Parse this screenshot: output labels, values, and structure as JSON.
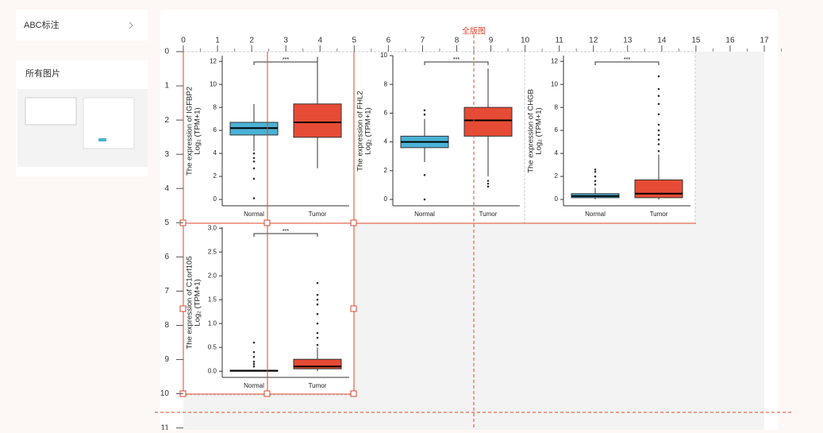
{
  "sidebar": {
    "annotation_item": "ABC标注",
    "all_images_title": "所有图片"
  },
  "canvas": {
    "layout_label": "全版图",
    "ruler_x": [
      0,
      1,
      2,
      3,
      4,
      5,
      6,
      7,
      8,
      9,
      10,
      11,
      12,
      13,
      14,
      15,
      16,
      17
    ],
    "ruler_y": [
      0,
      1,
      2,
      3,
      4,
      5,
      6,
      7,
      8,
      9,
      10,
      11
    ]
  },
  "panels": [
    {
      "ylabel": "The expression of IGFBP2",
      "ylabel2": "Log₂ (TPM+1)",
      "significance": "***",
      "categories": [
        "Normal",
        "Tumor"
      ],
      "colors": [
        "#4ab2d6",
        "#e64b35"
      ],
      "ylim": [
        -0.55,
        12.5
      ],
      "yticks": [
        0,
        2,
        4,
        6,
        8,
        10,
        12
      ],
      "boxes": [
        {
          "whisker_low": 4.2,
          "q1": 5.6,
          "median": 6.2,
          "q3": 6.7,
          "whisker_high": 8.3,
          "outliers": [
            0.1,
            1.8,
            2.7,
            3.3,
            3.6,
            4.0
          ]
        },
        {
          "whisker_low": 2.7,
          "q1": 5.4,
          "median": 6.7,
          "q3": 8.3,
          "whisker_high": 12.4,
          "outliers": []
        }
      ]
    },
    {
      "ylabel": "The expression of FHL2",
      "ylabel2": "Log₂ (TPM+1)",
      "significance": "***",
      "categories": [
        "Normal",
        "Tumor"
      ],
      "colors": [
        "#4ab2d6",
        "#e64b35"
      ],
      "ylim": [
        -0.44,
        10
      ],
      "yticks": [
        0,
        2,
        4,
        6,
        8,
        10
      ],
      "boxes": [
        {
          "whisker_low": 2.6,
          "q1": 3.6,
          "median": 4.0,
          "q3": 4.4,
          "whisker_high": 5.6,
          "outliers": [
            0,
            1.7,
            5.9,
            6.2
          ]
        },
        {
          "whisker_low": 1.6,
          "q1": 4.4,
          "median": 5.5,
          "q3": 6.4,
          "whisker_high": 9.1,
          "outliers": [
            0.9,
            1.1,
            1.3
          ]
        }
      ]
    },
    {
      "ylabel": "The expression of CHGB",
      "ylabel2": "Log₂ (TPM+1)",
      "significance": "***",
      "categories": [
        "Normal",
        "Tumor"
      ],
      "colors": [
        "#4ab2d6",
        "#e64b35"
      ],
      "ylim": [
        -0.55,
        12.5
      ],
      "yticks": [
        0,
        2,
        4,
        6,
        8,
        10,
        12
      ],
      "boxes": [
        {
          "whisker_low": 0,
          "q1": 0.15,
          "median": 0.3,
          "q3": 0.5,
          "whisker_high": 1.0,
          "outliers": [
            1.3,
            1.6,
            2.0,
            2.4,
            2.6
          ]
        },
        {
          "whisker_low": 0,
          "q1": 0.15,
          "median": 0.5,
          "q3": 1.7,
          "whisker_high": 3.9,
          "outliers": [
            4.2,
            4.8,
            5.2,
            5.6,
            6.0,
            6.5,
            7.4,
            8.3,
            9.0,
            9.6,
            10.7
          ]
        }
      ]
    },
    {
      "ylabel": "The expression of C1orf105",
      "ylabel2": "Log₂ (TPM+1)",
      "significance": "***",
      "categories": [
        "Normal",
        "Tumor"
      ],
      "colors": [
        "#4ab2d6",
        "#e64b35"
      ],
      "ylim": [
        -0.13,
        3.02
      ],
      "yticks": [
        {
          "value": 0,
          "label": "0.0"
        },
        0.5,
        {
          "value": 1,
          "label": "1.0"
        },
        1.5,
        {
          "value": 2,
          "label": "2.0"
        },
        2.5,
        {
          "value": 3,
          "label": "3.0"
        }
      ],
      "boxes": [
        {
          "whisker_low": 0,
          "q1": 0,
          "median": 0.01,
          "q3": 0.02,
          "whisker_high": 0.03,
          "outliers": [
            0.1,
            0.15,
            0.2,
            0.3,
            0.4,
            0.6
          ]
        },
        {
          "whisker_low": 0,
          "q1": 0.05,
          "median": 0.1,
          "q3": 0.25,
          "whisker_high": 0.5,
          "outliers": [
            0.55,
            0.7,
            0.8,
            1.0,
            1.2,
            1.4,
            1.5,
            1.6,
            1.85
          ]
        }
      ]
    }
  ]
}
